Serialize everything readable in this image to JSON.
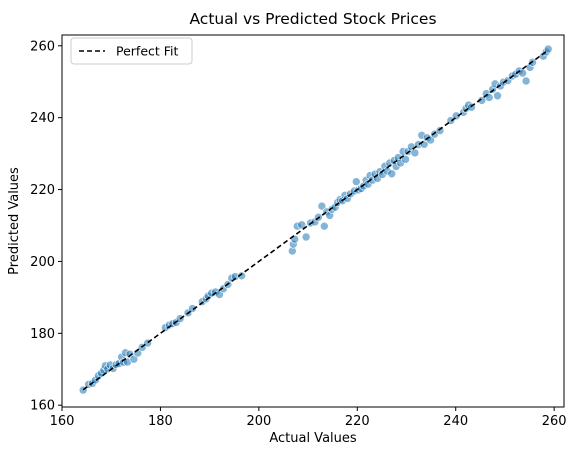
{
  "chart_data": {
    "type": "scatter",
    "title": "Actual vs Predicted Stock Prices",
    "xlabel": "Actual Values",
    "ylabel": "Predicted Values",
    "xlim": [
      160,
      262
    ],
    "ylim": [
      159.5,
      263
    ],
    "xticks": [
      160,
      180,
      200,
      220,
      240,
      260
    ],
    "yticks": [
      160,
      180,
      200,
      220,
      240,
      260
    ],
    "grid": false,
    "legend_position": "top-left",
    "colors": {
      "points": "#1f77b4",
      "fit_line": "#000000"
    },
    "legend": [
      {
        "label": "Perfect Fit",
        "style": "dashed"
      }
    ],
    "fit_line": {
      "label": "Perfect Fit",
      "x": [
        164.3,
        258.8
      ],
      "y": [
        164.3,
        258.8
      ]
    },
    "series": [
      {
        "points": [
          [
            164.3,
            164.2
          ],
          [
            165.4,
            165.8
          ],
          [
            166.2,
            166.1
          ],
          [
            166.8,
            167.0
          ],
          [
            167.4,
            168.2
          ],
          [
            168.0,
            168.9
          ],
          [
            168.5,
            169.8
          ],
          [
            168.8,
            171.0
          ],
          [
            169.3,
            170.1
          ],
          [
            169.8,
            171.2
          ],
          [
            170.4,
            170.2
          ],
          [
            171.0,
            171.3
          ],
          [
            171.6,
            171.6
          ],
          [
            172.1,
            173.4
          ],
          [
            172.5,
            171.9
          ],
          [
            172.9,
            174.6
          ],
          [
            173.3,
            172.0
          ],
          [
            173.8,
            174.2
          ],
          [
            174.6,
            172.8
          ],
          [
            175.4,
            174.5
          ],
          [
            176.3,
            176.1
          ],
          [
            177.4,
            177.3
          ],
          [
            181.0,
            181.6
          ],
          [
            181.8,
            182.3
          ],
          [
            182.5,
            182.7
          ],
          [
            183.2,
            183.0
          ],
          [
            184.0,
            184.1
          ],
          [
            185.6,
            185.7
          ],
          [
            186.5,
            186.9
          ],
          [
            188.5,
            188.8
          ],
          [
            189.3,
            189.6
          ],
          [
            189.7,
            190.4
          ],
          [
            190.4,
            191.2
          ],
          [
            191.2,
            191.5
          ],
          [
            192.0,
            190.8
          ],
          [
            192.8,
            192.4
          ],
          [
            193.7,
            193.6
          ],
          [
            194.5,
            195.4
          ],
          [
            195.2,
            195.8
          ],
          [
            196.5,
            196.0
          ],
          [
            206.8,
            202.9
          ],
          [
            207.0,
            204.8
          ],
          [
            207.3,
            206.2
          ],
          [
            207.8,
            209.8
          ],
          [
            208.7,
            210.2
          ],
          [
            209.6,
            206.8
          ],
          [
            210.5,
            210.7
          ],
          [
            211.4,
            211.0
          ],
          [
            212.1,
            212.3
          ],
          [
            212.8,
            215.4
          ],
          [
            213.3,
            209.8
          ],
          [
            213.8,
            213.8
          ],
          [
            214.4,
            212.8
          ],
          [
            214.9,
            214.5
          ],
          [
            215.5,
            215.1
          ],
          [
            216.0,
            216.4
          ],
          [
            216.5,
            217.2
          ],
          [
            217.0,
            216.9
          ],
          [
            217.5,
            218.4
          ],
          [
            218.0,
            217.5
          ],
          [
            218.6,
            218.8
          ],
          [
            219.4,
            219.6
          ],
          [
            219.8,
            222.2
          ],
          [
            220.3,
            219.9
          ],
          [
            220.8,
            220.3
          ],
          [
            221.3,
            221.0
          ],
          [
            221.8,
            222.6
          ],
          [
            222.2,
            221.5
          ],
          [
            222.6,
            223.9
          ],
          [
            223.1,
            222.6
          ],
          [
            223.6,
            224.3
          ],
          [
            224.1,
            223.1
          ],
          [
            224.6,
            225.0
          ],
          [
            225.1,
            224.2
          ],
          [
            225.6,
            226.5
          ],
          [
            226.1,
            225.1
          ],
          [
            226.6,
            227.4
          ],
          [
            227.0,
            224.4
          ],
          [
            227.5,
            228.1
          ],
          [
            227.9,
            226.4
          ],
          [
            228.3,
            228.9
          ],
          [
            228.8,
            227.4
          ],
          [
            229.3,
            230.6
          ],
          [
            229.8,
            228.4
          ],
          [
            230.3,
            230.6
          ],
          [
            231.0,
            231.9
          ],
          [
            231.7,
            230.2
          ],
          [
            232.4,
            232.5
          ],
          [
            233.1,
            235.1
          ],
          [
            233.6,
            232.6
          ],
          [
            234.2,
            234.4
          ],
          [
            234.9,
            233.8
          ],
          [
            235.7,
            235.4
          ],
          [
            236.8,
            236.4
          ],
          [
            239.0,
            239.2
          ],
          [
            240.1,
            240.5
          ],
          [
            241.6,
            241.5
          ],
          [
            242.1,
            242.6
          ],
          [
            242.6,
            243.5
          ],
          [
            243.2,
            242.9
          ],
          [
            245.3,
            244.8
          ],
          [
            246.2,
            246.7
          ],
          [
            246.8,
            245.6
          ],
          [
            247.5,
            247.9
          ],
          [
            248.0,
            249.4
          ],
          [
            248.5,
            246.1
          ],
          [
            249.1,
            248.8
          ],
          [
            249.7,
            249.9
          ],
          [
            250.6,
            250.3
          ],
          [
            251.5,
            251.6
          ],
          [
            252.2,
            252.1
          ],
          [
            252.9,
            253.0
          ],
          [
            253.6,
            252.4
          ],
          [
            254.3,
            250.2
          ],
          [
            255.1,
            254.0
          ],
          [
            255.6,
            255.4
          ],
          [
            257.8,
            257.1
          ],
          [
            258.4,
            258.3
          ],
          [
            258.8,
            259.1
          ]
        ]
      }
    ]
  }
}
